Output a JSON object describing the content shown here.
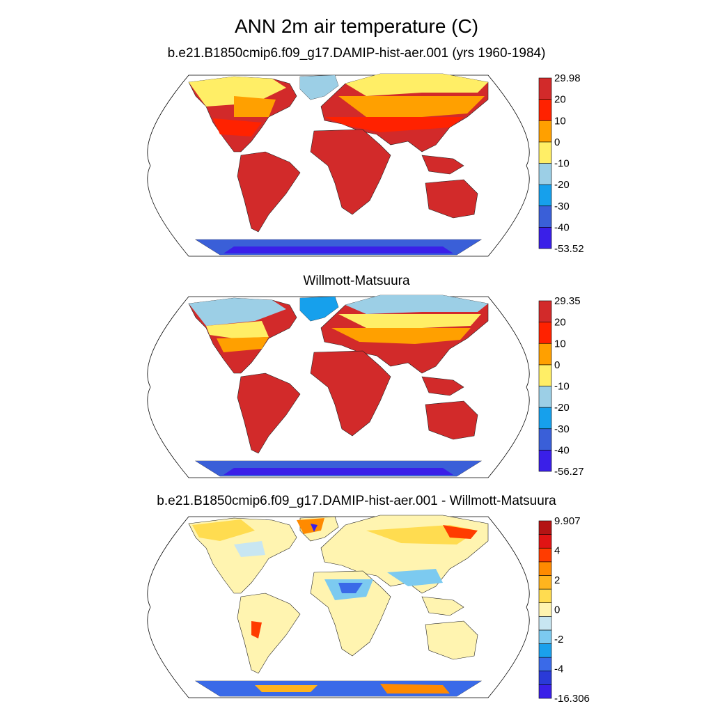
{
  "title": "ANN 2m air temperature (C)",
  "panels": [
    {
      "id": "model",
      "subtitle": "b.e21.B1850cmip6.f09_g17.DAMIP-hist-aer.001 (yrs 1960-1984)",
      "colorbar": {
        "colors": [
          "#3a1fe8",
          "#3a5fd8",
          "#16a0ec",
          "#9ccfe6",
          "#ffee66",
          "#ffa000",
          "#ff2200",
          "#d22a2a"
        ],
        "labels": [
          "-53.52",
          "-40",
          "-30",
          "-20",
          "-10",
          "0",
          "10",
          "20",
          "29.98"
        ]
      }
    },
    {
      "id": "obs",
      "subtitle": "Willmott-Matsuura",
      "colorbar": {
        "colors": [
          "#3a1fe8",
          "#3a5fd8",
          "#16a0ec",
          "#9ccfe6",
          "#ffee66",
          "#ffa000",
          "#ff2200",
          "#d22a2a"
        ],
        "labels": [
          "-56.27",
          "-40",
          "-30",
          "-20",
          "-10",
          "0",
          "10",
          "20",
          "29.35"
        ]
      }
    },
    {
      "id": "diff",
      "subtitle": "b.e21.B1850cmip6.f09_g17.DAMIP-hist-aer.001 - Willmott-Matsuura",
      "colorbar": {
        "colors": [
          "#3a1fe8",
          "#2a3ad8",
          "#3a6ae8",
          "#1aa0ec",
          "#7ccaf0",
          "#c8e6f2",
          "#fff4b0",
          "#ffdc50",
          "#ffb41e",
          "#ff8a00",
          "#ff3c00",
          "#e01414",
          "#b41414"
        ],
        "labels": [
          "-16.306",
          "-4",
          "-2",
          "0",
          "2",
          "4",
          "9.907"
        ]
      }
    }
  ]
}
